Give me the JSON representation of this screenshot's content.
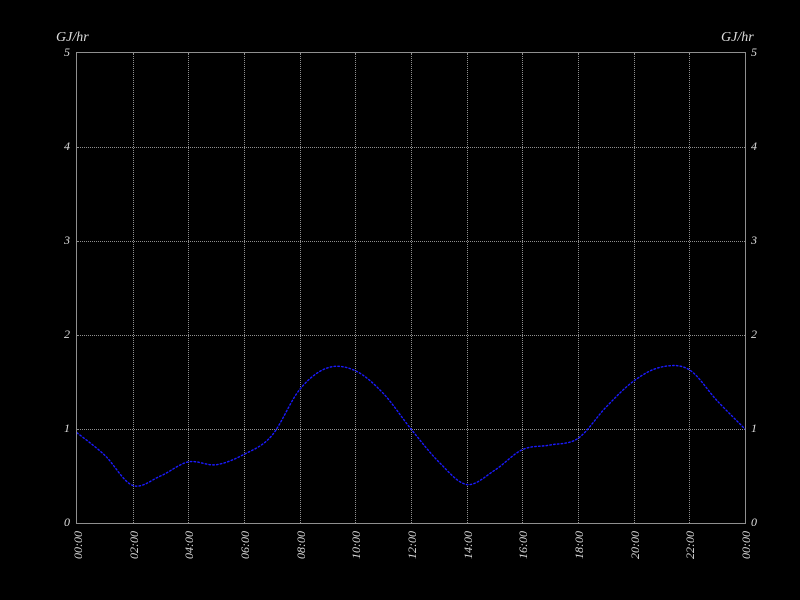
{
  "window": {
    "background": "#000000"
  },
  "chart_data": {
    "type": "line",
    "title": "",
    "left_axis_unit": "GJ/hr",
    "right_axis_unit": "GJ/hr",
    "x_tick_labels": [
      "00:00",
      "02:00",
      "04:00",
      "06:00",
      "08:00",
      "10:00",
      "12:00",
      "14:00",
      "16:00",
      "18:00",
      "20:00",
      "22:00",
      "00:00"
    ],
    "x_tick_label_rotation_deg": -90,
    "x_range_hours": [
      0,
      24
    ],
    "x": [
      0,
      1,
      2,
      3,
      4,
      5,
      6,
      7,
      8,
      9,
      10,
      11,
      12,
      13,
      14,
      15,
      16,
      17,
      18,
      19,
      20,
      21,
      22,
      23,
      24
    ],
    "series": [
      {
        "values": [
          0.96,
          0.72,
          0.4,
          0.5,
          0.65,
          0.62,
          0.73,
          0.93,
          1.42,
          1.65,
          1.62,
          1.38,
          1.0,
          0.65,
          0.41,
          0.56,
          0.78,
          0.83,
          0.9,
          1.23,
          1.51,
          1.66,
          1.63,
          1.3,
          1.0
        ],
        "color": "#1a1aff",
        "line_style": "dotted"
      }
    ],
    "ylim": [
      0,
      5
    ],
    "y_ticks_left": [
      "0",
      "1",
      "2",
      "3",
      "4",
      "5"
    ],
    "y_ticks_right": [
      "0",
      "1",
      "2",
      "3",
      "4",
      "5"
    ],
    "grid": "dotted",
    "legend": "none",
    "colors": {
      "background": "#000000",
      "frame": "#8f8f8f",
      "grid": "#8f8f8f",
      "tick_text": "#dcdcdc"
    }
  }
}
